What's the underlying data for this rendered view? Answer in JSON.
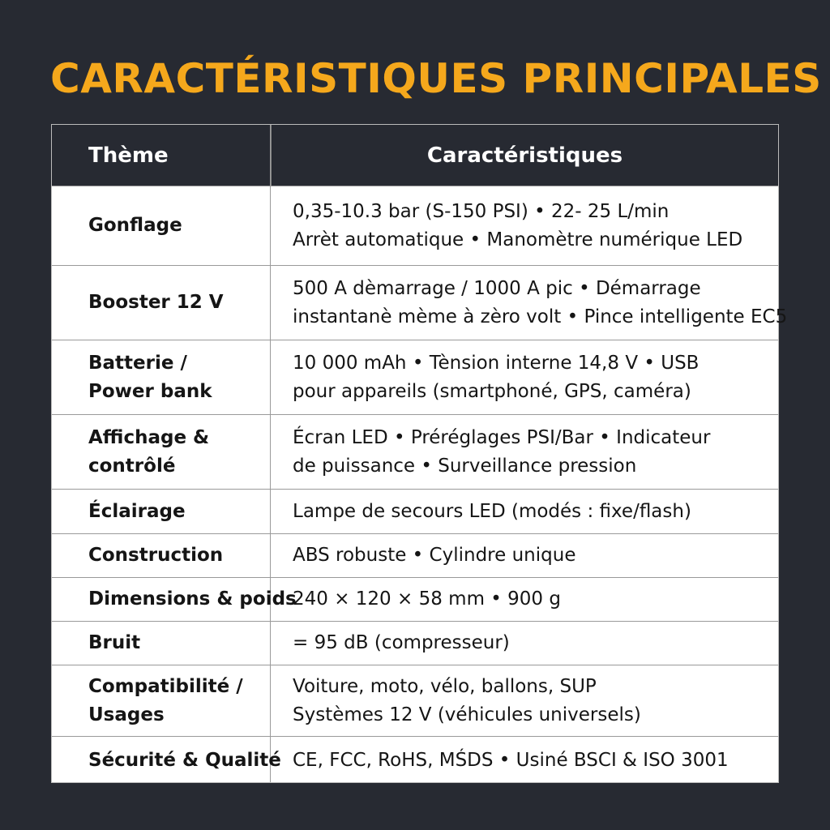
{
  "header": {
    "title": "CARACTÉRISTIQUES PRINCIPALES"
  },
  "table": {
    "columns": [
      "Thème",
      "Caractéristiques"
    ],
    "rows": [
      [
        [
          "Gonflage"
        ],
        [
          "0,35-10.3 bar (S-150 PSI) • 22- 25 L/min",
          "Arrèt automatique • Manomètre numérique LED"
        ]
      ],
      [
        [
          "Booster 12 V"
        ],
        [
          "500 A dèmarrage / 1000 A pic • Démarrage",
          "instantanè mème à zèro volt • Pince intelligente EC5"
        ]
      ],
      [
        [
          "Batterie /",
          "Power bank"
        ],
        [
          "10 000 mAh • Tènsion interne 14,8 V • USB",
          "pour appareils (smartphoné, GPS, caméra)"
        ]
      ],
      [
        [
          "Affichage &",
          "contrôlé"
        ],
        [
          "Écran LED • Préréglages PSI/Bar • Indicateur",
          "de puissance • Surveillance pression"
        ]
      ],
      [
        [
          "Éclairage"
        ],
        [
          "Lampe de secours LED (modés : fixe/flash)"
        ]
      ],
      [
        [
          "Construction"
        ],
        [
          "ABS robuste • Cylindre unique"
        ]
      ],
      [
        [
          "Dimensions & poids"
        ],
        [
          "240 × 120 × 58 mm • 900 g"
        ]
      ],
      [
        [
          "Bruit"
        ],
        [
          "= 95 dB (compresseur)"
        ]
      ],
      [
        [
          "Compatibilité /",
          "Usages"
        ],
        [
          "Voiture, moto, vélo, ballons, SUP",
          "Systèmes 12 V (véhicules universels)"
        ]
      ],
      [
        [
          "Sécurité & Qualité"
        ],
        [
          "CE, FCC, RoHS, MŚDS • Usiné BSCI & ISO 3001"
        ]
      ]
    ]
  }
}
